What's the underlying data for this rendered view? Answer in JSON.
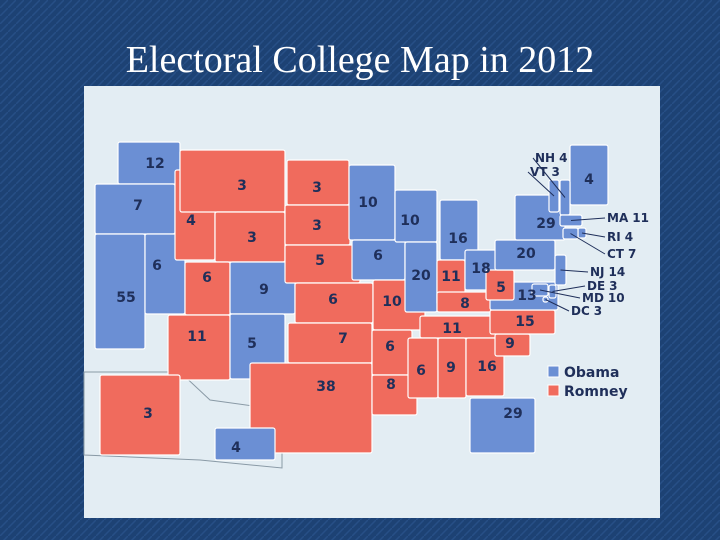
{
  "title": "Electoral College Map in 2012",
  "legend": [
    {
      "name": "Obama",
      "color": "#6b8fd4"
    },
    {
      "name": "Romney",
      "color": "#f06b5d"
    }
  ],
  "states": [
    {
      "votes": 12,
      "color": "#6b8fd4"
    },
    {
      "votes": 7,
      "color": "#6b8fd4"
    },
    {
      "votes": 55,
      "color": "#6b8fd4"
    },
    {
      "votes": 6,
      "color": "#6b8fd4"
    },
    {
      "votes": 4,
      "color": "#f06b5d"
    },
    {
      "votes": 3,
      "color": "#f06b5d"
    },
    {
      "votes": 3,
      "color": "#f06b5d"
    },
    {
      "votes": 6,
      "color": "#f06b5d"
    },
    {
      "votes": 9,
      "color": "#6b8fd4"
    },
    {
      "votes": 11,
      "color": "#f06b5d"
    },
    {
      "votes": 5,
      "color": "#6b8fd4"
    },
    {
      "votes": 3,
      "color": "#f06b5d"
    },
    {
      "votes": 3,
      "color": "#f06b5d"
    },
    {
      "votes": 5,
      "color": "#f06b5d"
    },
    {
      "votes": 6,
      "color": "#f06b5d"
    },
    {
      "votes": 7,
      "color": "#f06b5d"
    },
    {
      "votes": 38,
      "color": "#f06b5d"
    },
    {
      "votes": 10,
      "color": "#6b8fd4"
    },
    {
      "votes": 6,
      "color": "#6b8fd4"
    },
    {
      "votes": 10,
      "color": "#f06b5d"
    },
    {
      "votes": 6,
      "color": "#f06b5d"
    },
    {
      "votes": 8,
      "color": "#f06b5d"
    },
    {
      "votes": 10,
      "color": "#6b8fd4"
    },
    {
      "votes": 20,
      "color": "#6b8fd4"
    },
    {
      "votes": 16,
      "color": "#6b8fd4"
    },
    {
      "votes": 11,
      "color": "#f06b5d"
    },
    {
      "votes": 18,
      "color": "#6b8fd4"
    },
    {
      "votes": 8,
      "color": "#f06b5d"
    },
    {
      "votes": 11,
      "color": "#f06b5d"
    },
    {
      "votes": 6,
      "color": "#f06b5d"
    },
    {
      "votes": 9,
      "color": "#f06b5d"
    },
    {
      "votes": 16,
      "color": "#f06b5d"
    },
    {
      "votes": 29,
      "color": "#6b8fd4"
    },
    {
      "votes": 9,
      "color": "#f06b5d"
    },
    {
      "votes": 15,
      "color": "#f06b5d"
    },
    {
      "votes": 13,
      "color": "#6b8fd4"
    },
    {
      "votes": 5,
      "color": "#f06b5d"
    },
    {
      "votes": 20,
      "color": "#6b8fd4"
    },
    {
      "votes": 29,
      "color": "#6b8fd4"
    },
    {
      "votes": 4,
      "color": "#6b8fd4"
    },
    {
      "votes": 3,
      "color": "#f06b5d"
    },
    {
      "votes": 4,
      "color": "#6b8fd4"
    },
    {
      "abbr": "NH",
      "votes": 4,
      "color": "#6b8fd4"
    },
    {
      "abbr": "VT",
      "votes": 3,
      "color": "#6b8fd4"
    },
    {
      "abbr": "MA",
      "votes": 11,
      "color": "#6b8fd4"
    },
    {
      "abbr": "RI",
      "votes": 4,
      "color": "#6b8fd4"
    },
    {
      "abbr": "CT",
      "votes": 7,
      "color": "#6b8fd4"
    },
    {
      "abbr": "NJ",
      "votes": 14,
      "color": "#6b8fd4"
    },
    {
      "abbr": "DE",
      "votes": 3,
      "color": "#6b8fd4"
    },
    {
      "abbr": "MD",
      "votes": 10,
      "color": "#6b8fd4"
    },
    {
      "abbr": "DC",
      "votes": 3,
      "color": "#6b8fd4"
    }
  ]
}
